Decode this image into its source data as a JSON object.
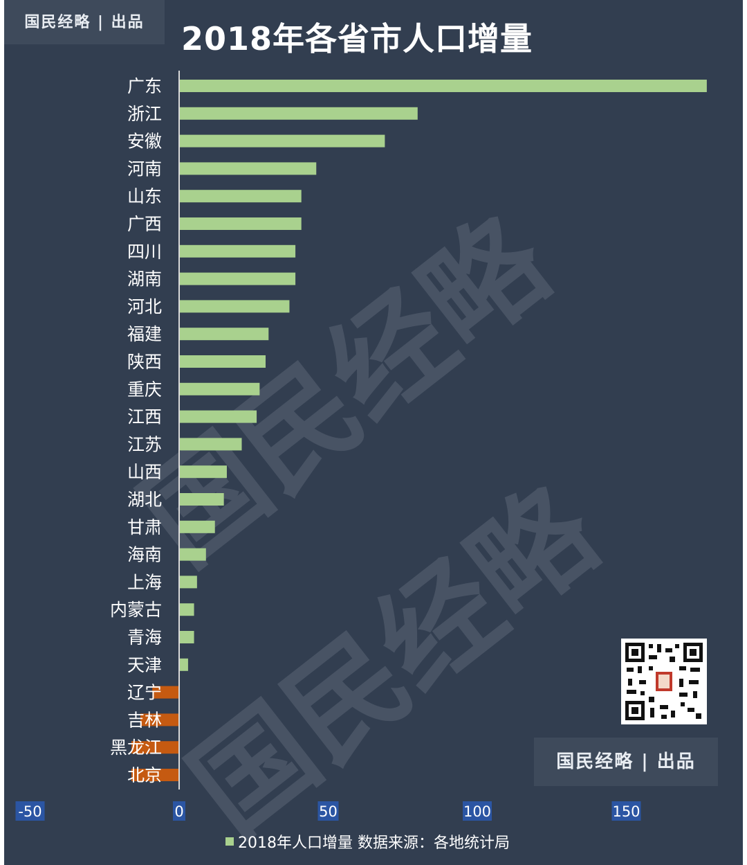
{
  "brand": {
    "top_label": "国民经略 | 出品",
    "bottom_label": "国民经略 | 出品"
  },
  "title": "2018年各省市人口增量",
  "legend": {
    "label": "2018年人口增量 数据来源：各地统计局"
  },
  "watermark": "国民经略",
  "colors": {
    "background": "#323e50",
    "positive": "#a9d18e",
    "negative": "#c55a11",
    "tick_bg": "#2b55a3"
  },
  "chart_data": {
    "type": "bar",
    "orientation": "horizontal",
    "title": "2018年各省市人口增量",
    "categories": [
      "广东",
      "浙江",
      "安徽",
      "河南",
      "山东",
      "广西",
      "四川",
      "湖南",
      "河北",
      "福建",
      "陕西",
      "重庆",
      "江西",
      "江苏",
      "山西",
      "湖北",
      "甘肃",
      "海南",
      "上海",
      "内蒙古",
      "青海",
      "天津",
      "辽宁",
      "吉林",
      "黑龙江",
      "北京"
    ],
    "values": [
      177,
      80,
      69,
      46,
      41,
      41,
      39,
      39,
      37,
      30,
      29,
      27,
      26,
      21,
      16,
      15,
      12,
      9,
      6,
      5,
      5,
      3,
      -9,
      -13,
      -16,
      -16
    ],
    "xlim": [
      -50,
      177
    ],
    "xticks": [
      -50,
      0,
      50,
      100,
      150
    ],
    "legend": "bottom",
    "grid": false
  }
}
